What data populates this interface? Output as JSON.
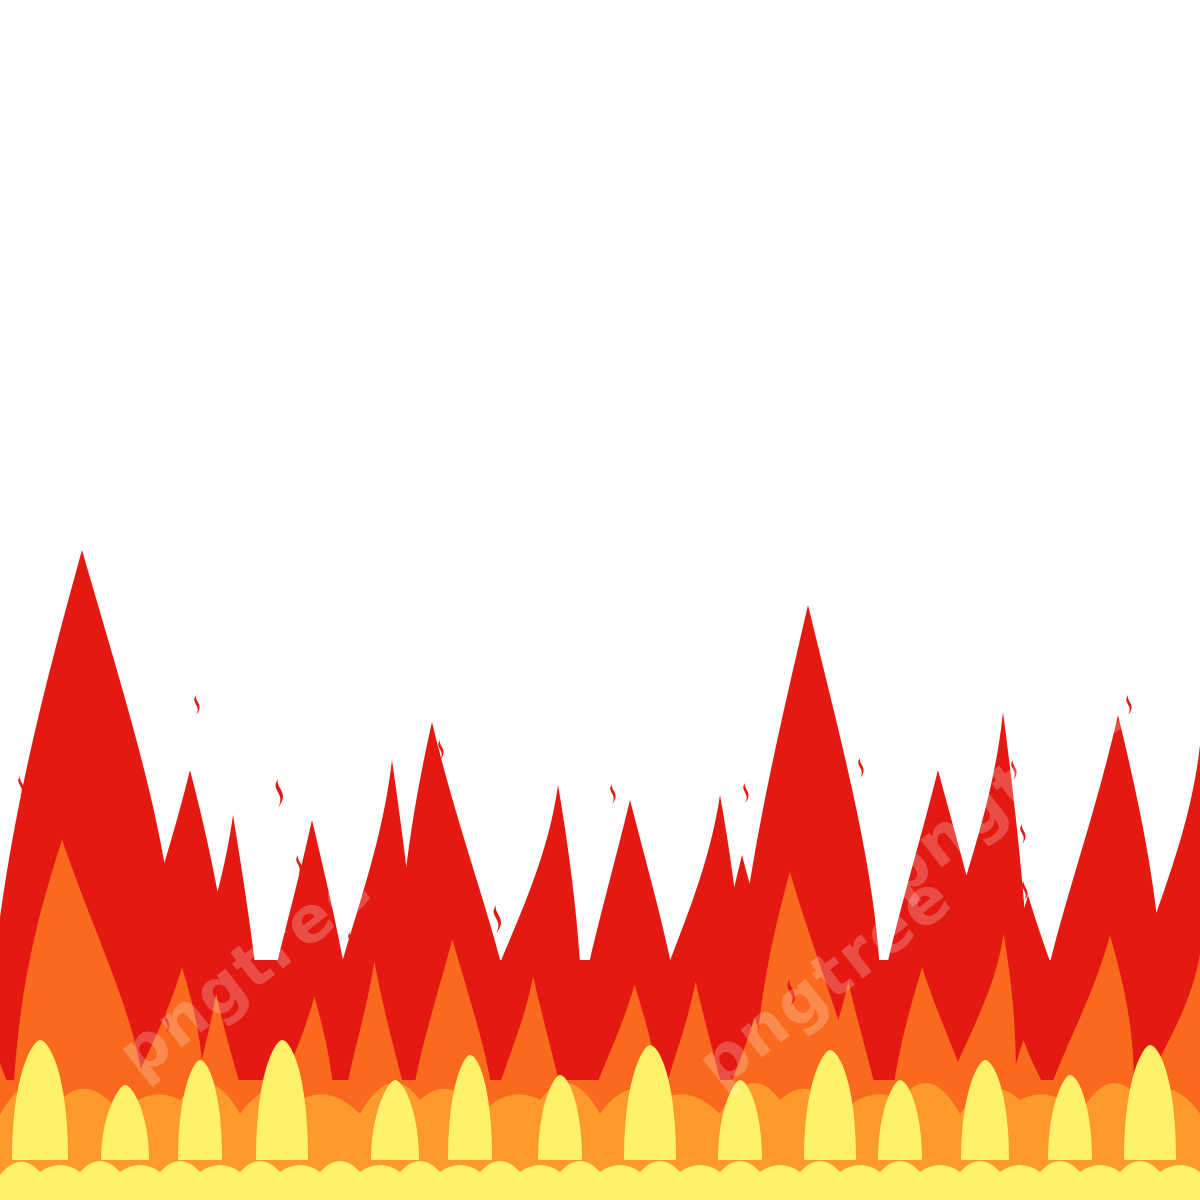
{
  "scene": {
    "background_color": "#ffffff",
    "colors": {
      "red": "#E41A12",
      "orange": "#FA6A1E",
      "light_orange": "#FE9A2B",
      "yellow": "#FFF26A"
    },
    "flame_count": 20,
    "ember_count": 24
  },
  "watermark": {
    "text": "pngtree",
    "repeat_count": 3
  }
}
